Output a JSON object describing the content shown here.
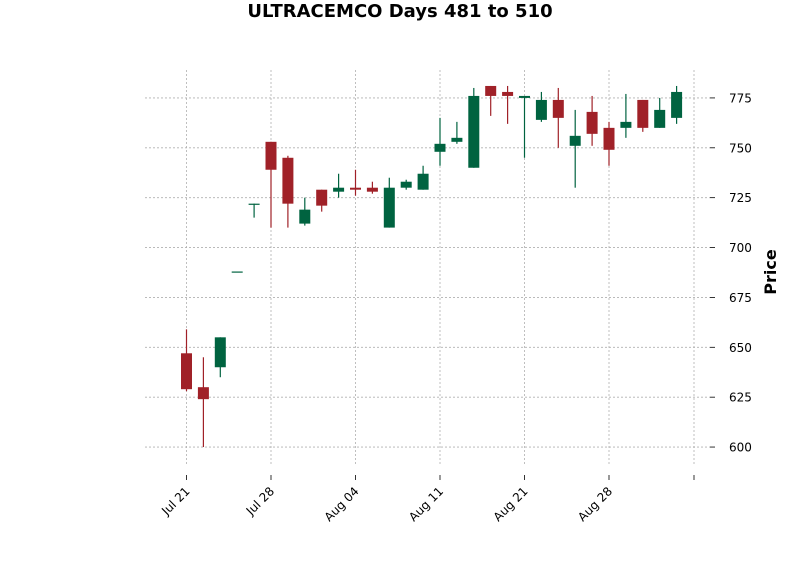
{
  "chart_data": {
    "type": "candlestick",
    "title": "ULTRACEMCO Days 481 to 510",
    "ylabel": "Price",
    "xlabel": "",
    "ylim": [
      591,
      789
    ],
    "yticks": [
      600,
      625,
      650,
      675,
      700,
      725,
      750,
      775
    ],
    "xtick_labels": [
      "Jul 21",
      "Jul 28",
      "Aug 04",
      "Aug 11",
      "Aug 21",
      "Aug 28",
      ""
    ],
    "grid": true,
    "y_axis_side": "right",
    "colors": {
      "up": "#006340",
      "down": "#a02128",
      "grid": "#b0b0b0"
    },
    "candles": [
      {
        "open": 647,
        "high": 659,
        "low": 628,
        "close": 629
      },
      {
        "open": 630,
        "high": 645,
        "low": 600,
        "close": 624
      },
      {
        "open": 640,
        "high": 655,
        "low": 635,
        "close": 655
      },
      {
        "open": 688,
        "high": 688,
        "low": 688,
        "close": 688
      },
      {
        "open": 722,
        "high": 722,
        "low": 715,
        "close": 722
      },
      {
        "open": 753,
        "high": 753,
        "low": 710,
        "close": 739
      },
      {
        "open": 745,
        "high": 746,
        "low": 710,
        "close": 722
      },
      {
        "open": 712,
        "high": 725,
        "low": 711,
        "close": 719
      },
      {
        "open": 729,
        "high": 729,
        "low": 718,
        "close": 721
      },
      {
        "open": 728,
        "high": 737,
        "low": 725,
        "close": 730
      },
      {
        "open": 730,
        "high": 739,
        "low": 726,
        "close": 729
      },
      {
        "open": 730,
        "high": 733,
        "low": 727,
        "close": 728
      },
      {
        "open": 710,
        "high": 735,
        "low": 710,
        "close": 730
      },
      {
        "open": 730,
        "high": 734,
        "low": 729,
        "close": 733
      },
      {
        "open": 729,
        "high": 741,
        "low": 729,
        "close": 737
      },
      {
        "open": 748,
        "high": 765,
        "low": 741,
        "close": 752
      },
      {
        "open": 753,
        "high": 763,
        "low": 752,
        "close": 755
      },
      {
        "open": 740,
        "high": 780,
        "low": 740,
        "close": 776
      },
      {
        "open": 781,
        "high": 781,
        "low": 766,
        "close": 776
      },
      {
        "open": 778,
        "high": 781,
        "low": 762,
        "close": 776
      },
      {
        "open": 775,
        "high": 776,
        "low": 745,
        "close": 776
      },
      {
        "open": 764,
        "high": 778,
        "low": 763,
        "close": 774
      },
      {
        "open": 774,
        "high": 780,
        "low": 750,
        "close": 765
      },
      {
        "open": 751,
        "high": 769,
        "low": 730,
        "close": 756
      },
      {
        "open": 768,
        "high": 776,
        "low": 751,
        "close": 757
      },
      {
        "open": 760,
        "high": 763,
        "low": 741,
        "close": 749
      },
      {
        "open": 760,
        "high": 777,
        "low": 755,
        "close": 763
      },
      {
        "open": 774,
        "high": 774,
        "low": 758,
        "close": 760
      },
      {
        "open": 760,
        "high": 775,
        "low": 760,
        "close": 769
      },
      {
        "open": 765,
        "high": 781,
        "low": 762,
        "close": 778
      }
    ]
  }
}
